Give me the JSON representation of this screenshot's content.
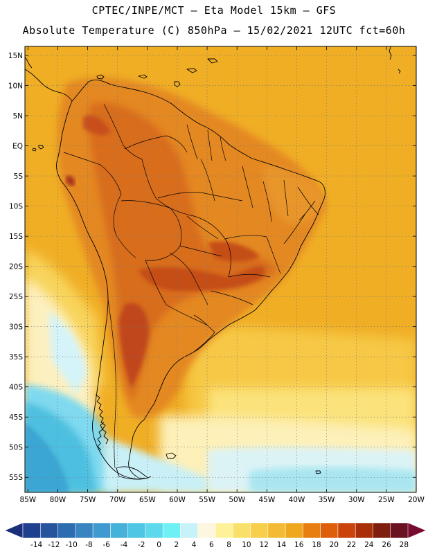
{
  "header": {
    "line1": "CPTEC/INPE/MCT –  Eta Model 15km – GFS",
    "line2": "Absolute Temperature (C) 850hPa – 15/02/2021 12UTC fct=60h"
  },
  "map": {
    "region": "South America",
    "lat_labels": [
      "15N",
      "10N",
      "5N",
      "EQ",
      "5S",
      "10S",
      "15S",
      "20S",
      "25S",
      "30S",
      "35S",
      "40S",
      "45S",
      "50S",
      "55S"
    ],
    "lat_values": [
      15,
      10,
      5,
      0,
      -5,
      -10,
      -15,
      -20,
      -25,
      -30,
      -35,
      -40,
      -45,
      -50,
      -55
    ],
    "lon_labels": [
      "85W",
      "80W",
      "75W",
      "70W",
      "65W",
      "60W",
      "55W",
      "50W",
      "45W",
      "40W",
      "35W",
      "30W",
      "25W",
      "20W"
    ],
    "lon_values": [
      -85,
      -80,
      -75,
      -70,
      -65,
      -60,
      -55,
      -50,
      -45,
      -40,
      -35,
      -30,
      -25,
      -20
    ],
    "lat_range": [
      -57.5,
      16.5
    ],
    "lon_range": [
      -85.5,
      -20
    ]
  },
  "colorbar": {
    "labels": [
      "-14",
      "-12",
      "-10",
      "-8",
      "-6",
      "-4",
      "-2",
      "0",
      "2",
      "4",
      "6",
      "8",
      "10",
      "12",
      "14",
      "16",
      "18",
      "20",
      "22",
      "24",
      "26",
      "28"
    ],
    "colors": [
      "#1f3f8f",
      "#26559e",
      "#2c6cb0",
      "#3a84c2",
      "#3f9bcf",
      "#46b2da",
      "#4fc6e3",
      "#5dd8ec",
      "#6ff0f4",
      "#c7f2f8",
      "#fff6e0",
      "#fdf29a",
      "#f9e06a",
      "#f7cf4a",
      "#f3bb33",
      "#efa71e",
      "#e87e12",
      "#dd5f0c",
      "#c9430a",
      "#a82f08",
      "#7e1e0e",
      "#6b1222"
    ],
    "under_color": "#1a2f7a",
    "over_color": "#7a0b30"
  },
  "colors": {
    "ocean_warm": "#efad24",
    "land_base": "#e58a22",
    "hot": "#d7641a",
    "cold_ocean": "#4fc8e5",
    "border": "#000000"
  }
}
